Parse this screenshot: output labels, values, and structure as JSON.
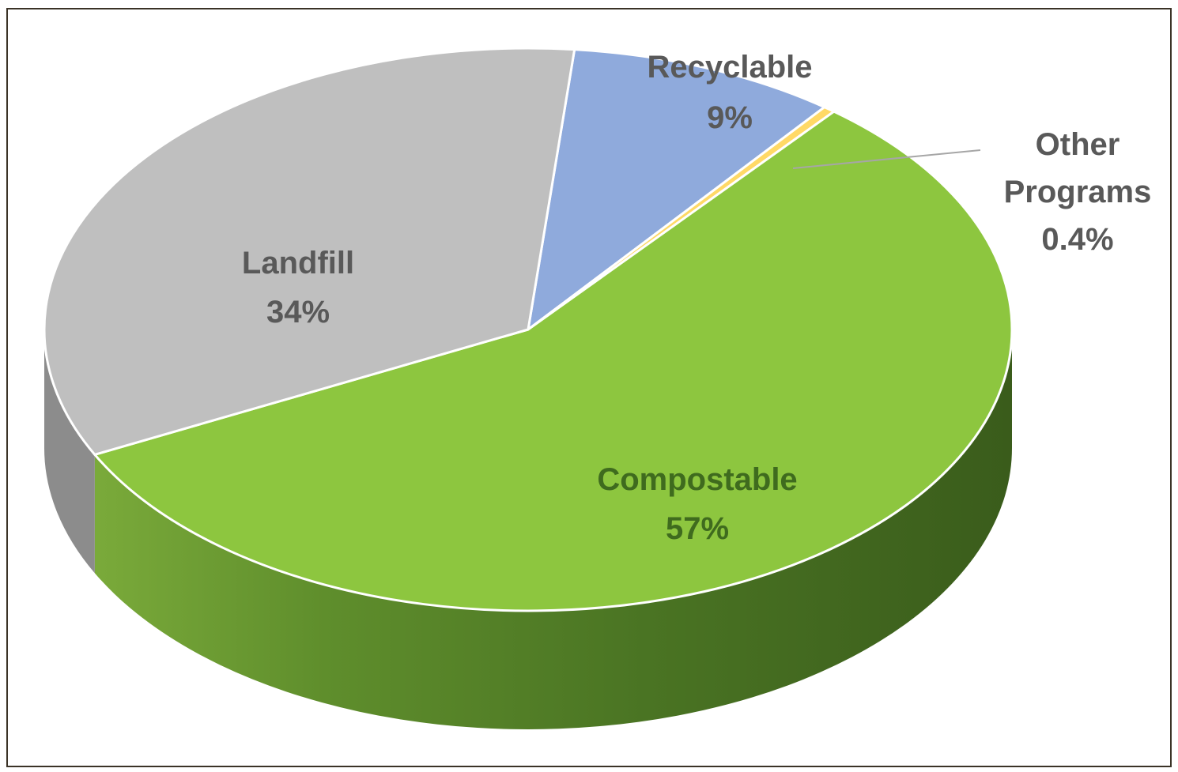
{
  "chart_data": {
    "type": "pie",
    "title": "",
    "style": "3d",
    "slices": [
      {
        "label": "Compostable",
        "value": 57,
        "value_label": "57%",
        "color": "#8dc63f",
        "side_color": "#4f7a26"
      },
      {
        "label": "Landfill",
        "value": 34,
        "value_label": "34%",
        "color": "#bfbfbf",
        "side_color": "#8c8c8c"
      },
      {
        "label": "Recyclable",
        "value": 9,
        "value_label": "9%",
        "color": "#8faadc",
        "side_color": "#5f7bb0"
      },
      {
        "label": "Other Programs",
        "value": 0.4,
        "value_label": "0.4%",
        "color": "#ffd966",
        "side_color": "#c9a83a"
      }
    ],
    "legend": "none"
  }
}
